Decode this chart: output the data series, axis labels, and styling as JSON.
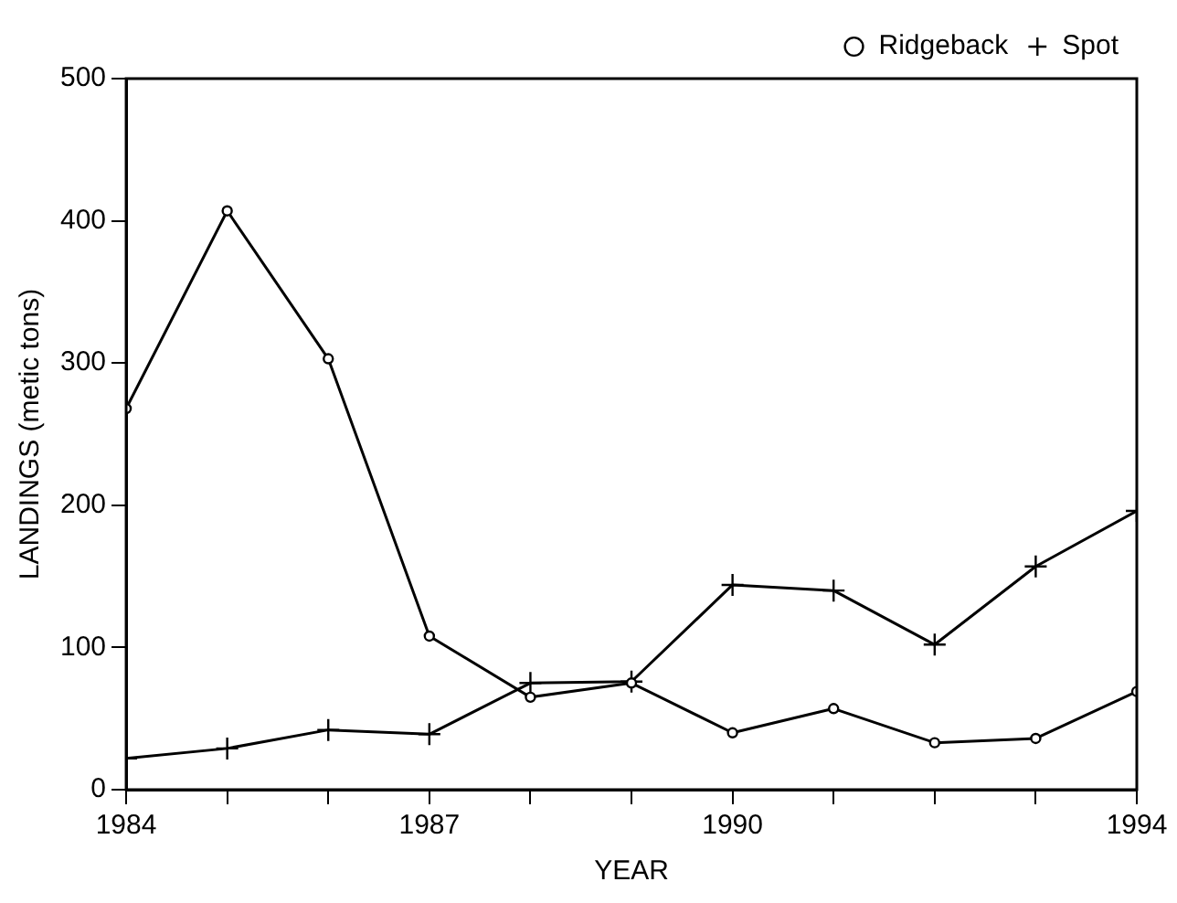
{
  "chart_data": {
    "type": "line",
    "xlabel": "YEAR",
    "ylabel": "LANDINGS (metic tons)",
    "x": [
      1984,
      1985,
      1986,
      1987,
      1988,
      1989,
      1990,
      1991,
      1992,
      1993,
      1994
    ],
    "series": [
      {
        "name": "Ridgeback",
        "color": "#000000",
        "marker": "circle",
        "values": [
          268,
          407,
          303,
          108,
          65,
          75,
          40,
          57,
          33,
          36,
          69
        ]
      },
      {
        "name": "Spot",
        "color": "#000000",
        "marker": "cross",
        "values": [
          22,
          29,
          42,
          39,
          75,
          76,
          144,
          140,
          102,
          157,
          196
        ]
      }
    ],
    "xlim": [
      1984,
      1994
    ],
    "xticks": [
      1984,
      {
        "value": 1985,
        "label": null
      },
      {
        "value": 1986,
        "label": null
      },
      1987,
      {
        "value": 1988,
        "label": null
      },
      {
        "value": 1989,
        "label": null
      },
      1990,
      {
        "value": 1991,
        "label": null
      },
      {
        "value": 1992,
        "label": null
      },
      {
        "value": 1993,
        "label": null
      },
      1994
    ],
    "ylim": [
      0,
      500
    ],
    "yticks": [
      0,
      100,
      200,
      300,
      400,
      500
    ],
    "grid": false,
    "legend": "top right",
    "line_style": "solid"
  }
}
